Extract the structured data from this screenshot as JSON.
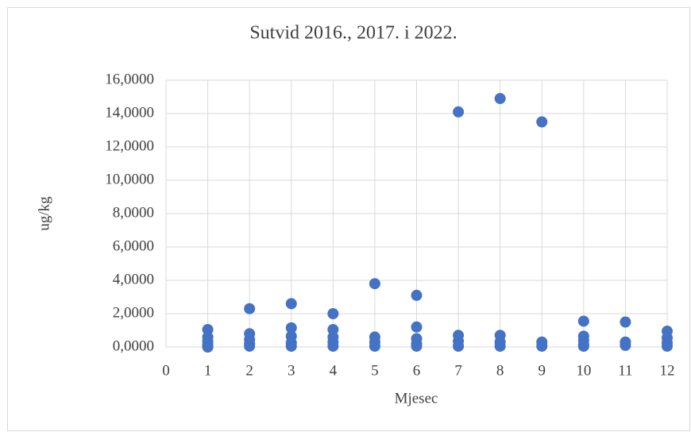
{
  "chart_data": {
    "type": "scatter",
    "title": "Sutvid 2016., 2017. i 2022.",
    "x_label": "Mjesec",
    "y_label": "ug/kg",
    "color": "#4472c4",
    "grid": true,
    "x": [
      1,
      1,
      1,
      1,
      1,
      1,
      2,
      2,
      2,
      2,
      2,
      3,
      3,
      3,
      3,
      3,
      4,
      4,
      4,
      4,
      4,
      5,
      5,
      5,
      5,
      6,
      6,
      6,
      6,
      6,
      7,
      7,
      7,
      7,
      8,
      8,
      8,
      8,
      9,
      9,
      9,
      10,
      10,
      10,
      10,
      10,
      11,
      11,
      11,
      12,
      12,
      12,
      12
    ],
    "values": [
      1.05,
      0.6,
      0.35,
      0.15,
      0.05,
      0.0,
      2.3,
      0.8,
      0.45,
      0.2,
      0.05,
      2.6,
      1.15,
      0.65,
      0.25,
      0.05,
      2.0,
      1.05,
      0.6,
      0.3,
      0.05,
      3.8,
      0.6,
      0.3,
      0.05,
      3.1,
      1.2,
      0.5,
      0.2,
      0.05,
      14.1,
      0.7,
      0.35,
      0.05,
      14.9,
      0.7,
      0.3,
      0.05,
      13.5,
      0.3,
      0.05,
      1.55,
      0.65,
      0.4,
      0.15,
      0.05,
      1.5,
      0.3,
      0.1,
      0.95,
      0.55,
      0.25,
      0.05
    ],
    "xlim": [
      0,
      12
    ],
    "xticks": [
      0,
      1,
      2,
      3,
      4,
      5,
      6,
      7,
      8,
      9,
      10,
      11,
      12
    ],
    "ylim": [
      0,
      16
    ],
    "yticks": [
      {
        "value": 0,
        "label": "0,0000"
      },
      {
        "value": 2,
        "label": "2,0000"
      },
      {
        "value": 4,
        "label": "4,0000"
      },
      {
        "value": 6,
        "label": "6,0000"
      },
      {
        "value": 8,
        "label": "8,0000"
      },
      {
        "value": 10,
        "label": "10,0000"
      },
      {
        "value": 12,
        "label": "12,0000"
      },
      {
        "value": 14,
        "label": "14,0000"
      },
      {
        "value": 16,
        "label": "16,0000"
      }
    ]
  }
}
